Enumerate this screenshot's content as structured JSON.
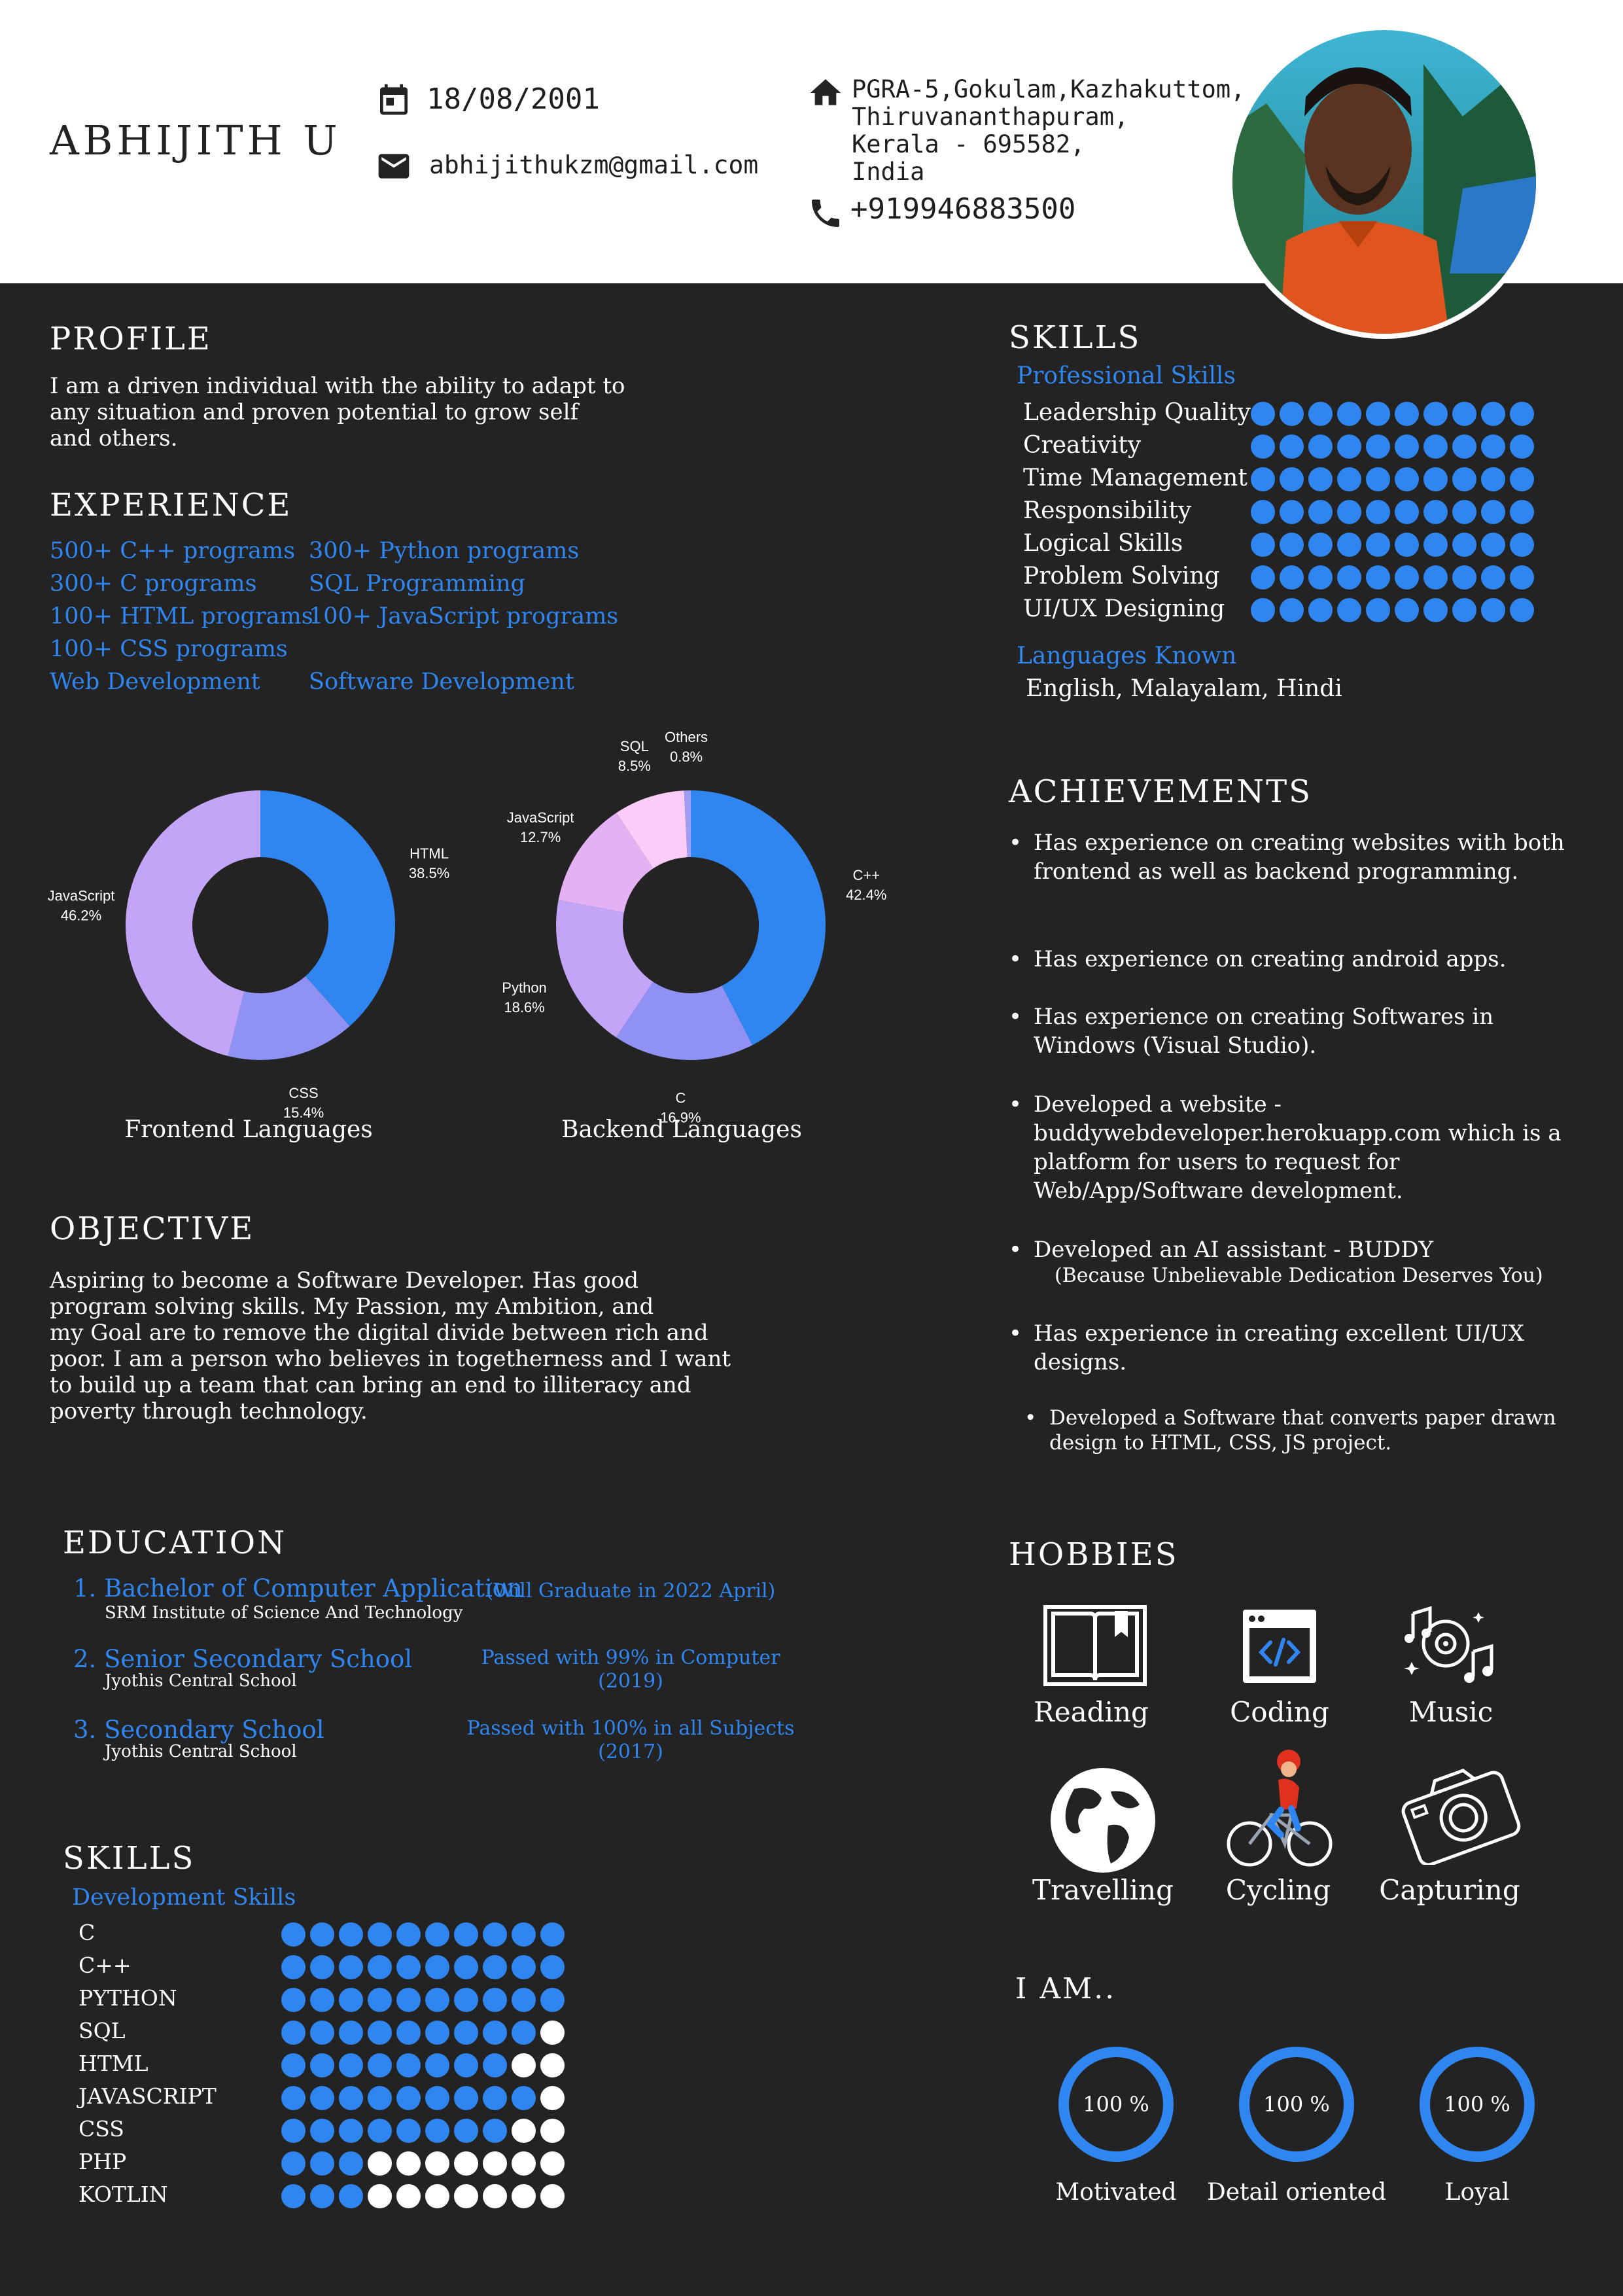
{
  "header": {
    "name": "ABHIJITH U",
    "dob": "18/08/2001",
    "email": "abhijithukzm@gmail.com",
    "address_lines": [
      "PGRA-5,Gokulam,Kazhakuttom,",
      "Thiruvananthapuram,",
      "Kerala - 695582,",
      "India"
    ],
    "phone": "+919946883500",
    "icons": {
      "dob": "calendar-icon",
      "email": "mail-icon",
      "address": "home-icon",
      "phone": "phone-icon",
      "photo": "profile-photo"
    }
  },
  "profile": {
    "title": "PROFILE",
    "text": "I am a driven individual with the ability to adapt to any situation and proven potential to grow self and others."
  },
  "experience": {
    "title": "EXPERIENCE",
    "left": [
      "500+ C++ programs",
      "300+ C programs",
      "100+ HTML programs",
      "100+ CSS programs",
      "Web Development"
    ],
    "right": [
      "300+ Python programs",
      "SQL Programming",
      "100+ JavaScript programs",
      "Software Development"
    ]
  },
  "chart_data": [
    {
      "type": "pie",
      "title": "Frontend Languages",
      "categories": [
        "HTML",
        "CSS",
        "JavaScript"
      ],
      "values": [
        38.5,
        15.4,
        46.2
      ],
      "labels": [
        "38.5%",
        "15.4%",
        "46.2%"
      ],
      "colors": [
        "#2f86f0",
        "#8f92f4",
        "#c2a5f6"
      ],
      "hole": true
    },
    {
      "type": "pie",
      "title": "Backend Languages",
      "categories": [
        "C++",
        "C",
        "Python",
        "JavaScript",
        "SQL",
        "Others"
      ],
      "values": [
        42.4,
        16.9,
        18.6,
        12.7,
        8.5,
        0.8
      ],
      "labels": [
        "42.4%",
        "16.9%",
        "18.6%",
        "12.7%",
        "8.5%",
        "0.8%"
      ],
      "colors": [
        "#2f86f0",
        "#8f92f4",
        "#c2a5f6",
        "#e4b1f4",
        "#fcccf8",
        "#a19df2"
      ],
      "hole": true
    }
  ],
  "objective": {
    "title": "OBJECTIVE",
    "lines": [
      "Aspiring to become a Software Developer. Has good",
      "program solving skills. My Passion, my Ambition, and",
      "my Goal are to remove the digital divide between rich and",
      "poor. I am a person who believes in togetherness and I want",
      "to build up a team that can bring an end to illiteracy and",
      "poverty through technology."
    ]
  },
  "education": {
    "title": "EDUCATION",
    "items": [
      {
        "title": "1. Bachelor of Computer Application",
        "school": "SRM Institute of Science And Technology",
        "note": "(Will Graduate in 2022 April)"
      },
      {
        "title": "2. Senior Secondary School",
        "school": "Jyothis Central School",
        "note": "Passed with 99% in Computer (2019)"
      },
      {
        "title": "3. Secondary School",
        "school": "Jyothis Central School",
        "note": "Passed with 100% in all Subjects (2017)"
      }
    ]
  },
  "dev_skills": {
    "title": "SKILLS",
    "subtitle": "Development Skills",
    "items": [
      {
        "name": "C",
        "level": 10
      },
      {
        "name": "C++",
        "level": 10
      },
      {
        "name": "PYTHON",
        "level": 10
      },
      {
        "name": "SQL",
        "level": 9
      },
      {
        "name": "HTML",
        "level": 8
      },
      {
        "name": "JAVASCRIPT",
        "level": 9
      },
      {
        "name": "CSS",
        "level": 8
      },
      {
        "name": "PHP",
        "level": 3
      },
      {
        "name": "KOTLIN",
        "level": 3
      }
    ],
    "max": 10
  },
  "skills": {
    "title": "SKILLS",
    "professional_title": "Professional Skills",
    "professional": [
      {
        "name": "Leadership Quality",
        "level": 10
      },
      {
        "name": "Creativity",
        "level": 10
      },
      {
        "name": "Time Management",
        "level": 10
      },
      {
        "name": "Responsibility",
        "level": 10
      },
      {
        "name": "Logical Skills",
        "level": 10
      },
      {
        "name": "Problem Solving",
        "level": 10
      },
      {
        "name": "UI/UX Designing",
        "level": 10
      }
    ],
    "max": 10,
    "languages_title": "Languages Known",
    "languages": "English, Malayalam, Hindi"
  },
  "achievements": {
    "title": "ACHIEVEMENTS",
    "items": [
      "Has experience on creating websites with both frontend as well as backend programming.",
      "Has experience on creating android apps.",
      "Has experience on creating Softwares in Windows (Visual Studio).",
      "Developed a website - buddywebdeveloper.herokuapp.com which is a platform for users to request for Web/App/Software development.",
      "Developed an AI assistant - BUDDY",
      "Has experience in creating excellent UI/UX designs.",
      "Developed a Software that converts paper drawn design to HTML, CSS, JS project."
    ],
    "buddy_note": "(Because Unbelievable Dedication Deserves You)"
  },
  "hobbies": {
    "title": "HOBBIES",
    "items": [
      {
        "label": "Reading",
        "icon": "book-icon"
      },
      {
        "label": "Coding",
        "icon": "code-window-icon"
      },
      {
        "label": "Music",
        "icon": "music-notes-icon"
      },
      {
        "label": "Travelling",
        "icon": "globe-icon"
      },
      {
        "label": "Cycling",
        "icon": "cyclist-icon"
      },
      {
        "label": "Capturing",
        "icon": "camera-icon"
      }
    ]
  },
  "iam": {
    "title": "I AM..",
    "items": [
      {
        "label": "Motivated",
        "value": "100 %",
        "percent": 100
      },
      {
        "label": "Detail oriented",
        "value": "100 %",
        "percent": 100
      },
      {
        "label": "Loyal",
        "value": "100 %",
        "percent": 100
      }
    ]
  },
  "colors": {
    "accent": "#2f86f0",
    "background": "#232323",
    "header": "#ffffff"
  }
}
